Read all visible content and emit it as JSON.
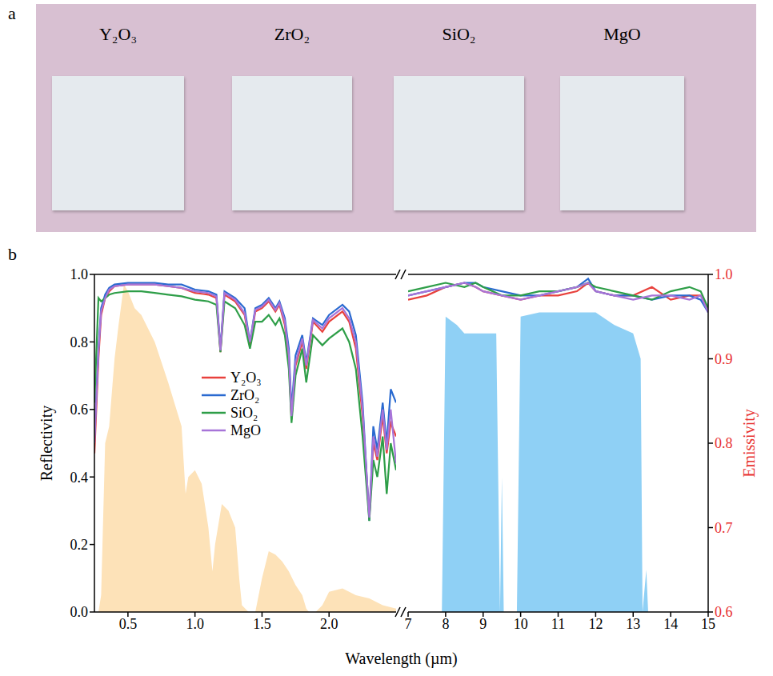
{
  "photo": {
    "letter": "a",
    "labels": [
      "Y₂O₃",
      "ZrO₂",
      "SiO₂",
      "MgO"
    ]
  },
  "chart_data": [
    {
      "letter": "b",
      "type": "line",
      "xlabel": "Wavelength (µm)",
      "ylabel": "Reflectivity",
      "legend": "center",
      "xlim": [
        0.25,
        2.5
      ],
      "xticks": [
        0.5,
        {
          "value": 1,
          "label": "1.0"
        },
        1.5,
        {
          "value": 2,
          "label": "2.0"
        }
      ],
      "ylim": [
        0,
        1
      ],
      "yticks": [
        {
          "value": 0,
          "label": "0.0"
        },
        0.2,
        0.4,
        0.6,
        0.8,
        {
          "value": 1,
          "label": "1.0"
        }
      ],
      "x": [
        0.25,
        0.28,
        0.3,
        0.33,
        0.36,
        0.4,
        0.5,
        0.6,
        0.7,
        0.8,
        0.9,
        1.0,
        1.1,
        1.16,
        1.19,
        1.22,
        1.3,
        1.37,
        1.41,
        1.45,
        1.5,
        1.55,
        1.6,
        1.63,
        1.67,
        1.7,
        1.72,
        1.75,
        1.8,
        1.83,
        1.88,
        1.95,
        2.0,
        2.1,
        2.15,
        2.2,
        2.25,
        2.3,
        2.33,
        2.36,
        2.4,
        2.43,
        2.46,
        2.5
      ],
      "series": [
        {
          "name": "Y₂O₃",
          "color": "#e8413c",
          "values": [
            0.47,
            0.75,
            0.88,
            0.93,
            0.95,
            0.965,
            0.97,
            0.97,
            0.97,
            0.965,
            0.96,
            0.945,
            0.94,
            0.93,
            0.77,
            0.94,
            0.92,
            0.88,
            0.79,
            0.89,
            0.9,
            0.92,
            0.89,
            0.91,
            0.85,
            0.75,
            0.57,
            0.73,
            0.8,
            0.72,
            0.86,
            0.83,
            0.86,
            0.89,
            0.86,
            0.78,
            0.58,
            0.28,
            0.5,
            0.45,
            0.58,
            0.47,
            0.56,
            0.52
          ]
        },
        {
          "name": "ZrO₂",
          "color": "#2a6ad0",
          "values": [
            0.52,
            0.78,
            0.9,
            0.94,
            0.96,
            0.97,
            0.975,
            0.975,
            0.975,
            0.97,
            0.97,
            0.955,
            0.95,
            0.94,
            0.78,
            0.95,
            0.93,
            0.9,
            0.8,
            0.9,
            0.91,
            0.93,
            0.9,
            0.92,
            0.87,
            0.78,
            0.6,
            0.76,
            0.82,
            0.74,
            0.87,
            0.85,
            0.88,
            0.91,
            0.89,
            0.82,
            0.62,
            0.27,
            0.55,
            0.48,
            0.62,
            0.5,
            0.66,
            0.62
          ]
        },
        {
          "name": "SiO₂",
          "color": "#2e9e48",
          "values": [
            0.62,
            0.93,
            0.92,
            0.93,
            0.94,
            0.945,
            0.95,
            0.95,
            0.945,
            0.94,
            0.935,
            0.925,
            0.92,
            0.91,
            0.77,
            0.92,
            0.9,
            0.85,
            0.78,
            0.86,
            0.86,
            0.88,
            0.85,
            0.87,
            0.82,
            0.72,
            0.56,
            0.7,
            0.78,
            0.68,
            0.82,
            0.79,
            0.81,
            0.84,
            0.8,
            0.72,
            0.52,
            0.27,
            0.45,
            0.4,
            0.52,
            0.35,
            0.5,
            0.42
          ]
        },
        {
          "name": "MgO",
          "color": "#a774d8",
          "values": [
            0.5,
            0.77,
            0.89,
            0.93,
            0.955,
            0.965,
            0.97,
            0.97,
            0.97,
            0.965,
            0.96,
            0.95,
            0.945,
            0.935,
            0.775,
            0.945,
            0.925,
            0.885,
            0.8,
            0.895,
            0.905,
            0.925,
            0.895,
            0.915,
            0.86,
            0.76,
            0.58,
            0.74,
            0.81,
            0.73,
            0.865,
            0.84,
            0.87,
            0.9,
            0.87,
            0.8,
            0.6,
            0.28,
            0.52,
            0.46,
            0.6,
            0.48,
            0.6,
            0.44
          ]
        }
      ],
      "solar_spectrum": {
        "type": "area",
        "color": "#fde2b8",
        "x": [
          0.28,
          0.3,
          0.33,
          0.36,
          0.4,
          0.43,
          0.47,
          0.5,
          0.55,
          0.6,
          0.7,
          0.8,
          0.9,
          0.93,
          0.95,
          1.0,
          1.05,
          1.1,
          1.13,
          1.15,
          1.2,
          1.25,
          1.3,
          1.33,
          1.35,
          1.4,
          1.45,
          1.5,
          1.55,
          1.6,
          1.65,
          1.7,
          1.75,
          1.8,
          1.83,
          1.85,
          1.9,
          1.95,
          2.0,
          2.1,
          2.2,
          2.3,
          2.4,
          2.5
        ],
        "values": [
          0,
          0.05,
          0.5,
          0.55,
          0.75,
          0.85,
          0.97,
          0.95,
          0.9,
          0.88,
          0.8,
          0.68,
          0.55,
          0.35,
          0.4,
          0.42,
          0.38,
          0.25,
          0.12,
          0.2,
          0.32,
          0.3,
          0.25,
          0.1,
          0.02,
          0,
          0,
          0.1,
          0.18,
          0.17,
          0.15,
          0.12,
          0.08,
          0.05,
          0.01,
          0,
          0,
          0.02,
          0.06,
          0.07,
          0.05,
          0.04,
          0.02,
          0.01
        ]
      }
    },
    {
      "type": "line",
      "y2label": "Emissivity",
      "xlim": [
        7,
        15
      ],
      "xticks": [
        7,
        8,
        9,
        10,
        11,
        12,
        13,
        14,
        15
      ],
      "y2lim": [
        0.6,
        1
      ],
      "y2ticks": [
        0.6,
        0.7,
        0.8,
        0.9,
        {
          "value": 1,
          "label": "1.0"
        }
      ],
      "x": [
        7,
        7.5,
        8,
        8.5,
        8.8,
        9,
        9.5,
        10,
        10.5,
        11,
        11.5,
        11.8,
        12,
        12.5,
        13,
        13.5,
        14,
        14.5,
        14.8,
        15
      ],
      "series": [
        {
          "name": "Y₂O₃",
          "color": "#e8413c",
          "axis": "y2",
          "values": [
            0.97,
            0.975,
            0.985,
            0.99,
            0.985,
            0.98,
            0.975,
            0.97,
            0.975,
            0.975,
            0.98,
            0.99,
            0.98,
            0.975,
            0.975,
            0.985,
            0.97,
            0.975,
            0.975,
            0.96
          ]
        },
        {
          "name": "ZrO₂",
          "color": "#2a6ad0",
          "axis": "y2",
          "values": [
            0.975,
            0.98,
            0.985,
            0.99,
            0.99,
            0.985,
            0.98,
            0.975,
            0.975,
            0.98,
            0.985,
            0.995,
            0.98,
            0.975,
            0.975,
            0.97,
            0.975,
            0.975,
            0.97,
            0.955
          ]
        },
        {
          "name": "SiO₂",
          "color": "#2e9e48",
          "axis": "y2",
          "values": [
            0.98,
            0.985,
            0.99,
            0.985,
            0.99,
            0.985,
            0.975,
            0.975,
            0.98,
            0.98,
            0.985,
            0.99,
            0.985,
            0.98,
            0.975,
            0.97,
            0.98,
            0.985,
            0.98,
            0.96
          ]
        },
        {
          "name": "MgO",
          "color": "#a774d8",
          "axis": "y2",
          "values": [
            0.975,
            0.98,
            0.985,
            0.99,
            0.985,
            0.98,
            0.975,
            0.97,
            0.975,
            0.98,
            0.985,
            0.99,
            0.98,
            0.975,
            0.97,
            0.975,
            0.975,
            0.97,
            0.975,
            0.955
          ]
        }
      ],
      "atmospheric_window": {
        "type": "area",
        "color": "#8fd0f5",
        "axis": "y2",
        "x": [
          7.9,
          8.0,
          8.3,
          8.5,
          9.0,
          9.35,
          9.45,
          9.5,
          9.55,
          9.6,
          9.9,
          10.0,
          10.5,
          11,
          11.5,
          12,
          12.5,
          13,
          13.2,
          13.25,
          13.35,
          13.4,
          13.45
        ],
        "values": [
          0.6,
          0.95,
          0.94,
          0.93,
          0.93,
          0.93,
          0.6,
          0.76,
          0.6,
          0.6,
          0.6,
          0.95,
          0.955,
          0.955,
          0.955,
          0.955,
          0.94,
          0.93,
          0.9,
          0.6,
          0.65,
          0.6,
          0.6
        ]
      }
    }
  ]
}
